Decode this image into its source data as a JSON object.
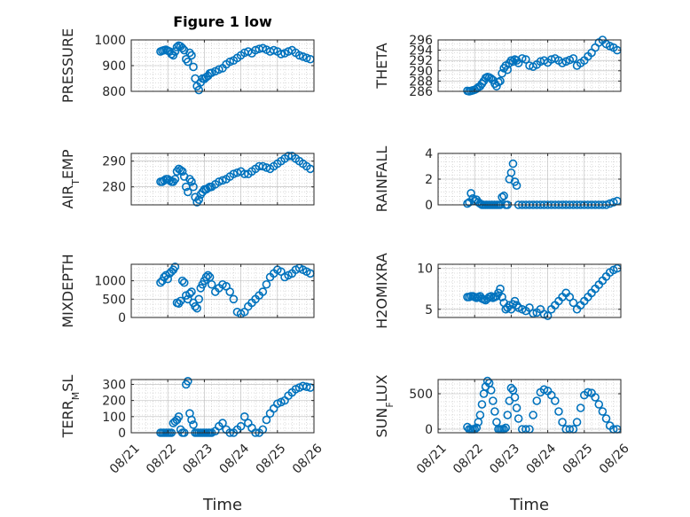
{
  "figure": {
    "title": "Figure 1 low"
  },
  "colors": {
    "marker": "#0072BD",
    "axis": "#262626",
    "grid": "#b8b8b8"
  },
  "chart_data": [
    {
      "type": "scatter",
      "id": "pressure",
      "title": "Figure 1 low",
      "ylabel": "PRESSURE",
      "ylabel_sub": "",
      "ylabel_tail": "",
      "xlabel": "",
      "ylim": [
        800,
        1000
      ],
      "yticks": [
        800,
        900,
        1000
      ],
      "xlim": [
        0,
        5
      ],
      "grid": true,
      "x": [
        0.8,
        0.85,
        0.9,
        0.95,
        1.0,
        1.05,
        1.1,
        1.15,
        1.2,
        1.25,
        1.3,
        1.35,
        1.4,
        1.45,
        1.5,
        1.55,
        1.6,
        1.65,
        1.7,
        1.75,
        1.8,
        1.85,
        1.9,
        1.95,
        2.0,
        2.05,
        2.1,
        2.15,
        2.2,
        2.3,
        2.4,
        2.5,
        2.6,
        2.7,
        2.8,
        2.9,
        3.0,
        3.1,
        3.2,
        3.3,
        3.4,
        3.5,
        3.6,
        3.7,
        3.8,
        3.9,
        4.0,
        4.1,
        4.2,
        4.3,
        4.4,
        4.5,
        4.6,
        4.7,
        4.8,
        4.9
      ],
      "y": [
        955,
        958,
        960,
        962,
        958,
        955,
        945,
        940,
        955,
        972,
        978,
        975,
        968,
        960,
        925,
        915,
        950,
        940,
        895,
        850,
        820,
        805,
        835,
        850,
        848,
        855,
        860,
        870,
        872,
        878,
        885,
        890,
        905,
        915,
        920,
        930,
        940,
        950,
        955,
        948,
        960,
        965,
        968,
        962,
        955,
        960,
        955,
        945,
        948,
        955,
        960,
        950,
        940,
        935,
        930,
        925
      ]
    },
    {
      "type": "scatter",
      "id": "theta",
      "ylabel": "THETA",
      "ylabel_sub": "",
      "ylabel_tail": "",
      "xlabel": "",
      "ylim": [
        286,
        296
      ],
      "yticks": [
        286,
        288,
        290,
        292,
        294,
        296
      ],
      "xlim": [
        0,
        5
      ],
      "grid": true,
      "x": [
        0.8,
        0.85,
        0.9,
        0.95,
        1.0,
        1.05,
        1.1,
        1.15,
        1.2,
        1.25,
        1.3,
        1.35,
        1.4,
        1.45,
        1.5,
        1.55,
        1.6,
        1.65,
        1.7,
        1.75,
        1.8,
        1.85,
        1.9,
        1.95,
        2.0,
        2.05,
        2.1,
        2.15,
        2.2,
        2.3,
        2.4,
        2.5,
        2.6,
        2.7,
        2.8,
        2.9,
        3.0,
        3.1,
        3.2,
        3.3,
        3.4,
        3.5,
        3.6,
        3.7,
        3.8,
        3.9,
        4.0,
        4.1,
        4.2,
        4.3,
        4.4,
        4.5,
        4.6,
        4.7,
        4.8,
        4.9
      ],
      "y": [
        286.1,
        286.0,
        286.1,
        286.2,
        286.3,
        286.5,
        286.8,
        287.0,
        287.5,
        288.0,
        288.6,
        288.8,
        288.7,
        288.5,
        288.2,
        287.5,
        287.0,
        287.8,
        288.0,
        289.5,
        290.5,
        291.0,
        290.2,
        291.5,
        292.0,
        291.8,
        292.2,
        292.0,
        291.5,
        292.4,
        292.2,
        291.0,
        290.8,
        291.2,
        291.8,
        292.0,
        291.6,
        292.2,
        292.4,
        292.0,
        291.5,
        291.8,
        292.1,
        292.4,
        291.0,
        291.5,
        292.0,
        292.8,
        293.5,
        294.5,
        295.5,
        296.0,
        295.2,
        294.8,
        294.5,
        294.0
      ]
    },
    {
      "type": "scatter",
      "id": "airtemp",
      "ylabel": "AIR",
      "ylabel_sub": "T",
      "ylabel_tail": "EMP",
      "xlabel": "",
      "ylim": [
        273,
        293
      ],
      "yticks": [
        280,
        290
      ],
      "xlim": [
        0,
        5
      ],
      "grid": true,
      "x": [
        0.8,
        0.85,
        0.9,
        0.95,
        1.0,
        1.05,
        1.1,
        1.15,
        1.2,
        1.25,
        1.3,
        1.35,
        1.4,
        1.45,
        1.5,
        1.55,
        1.6,
        1.65,
        1.7,
        1.75,
        1.8,
        1.85,
        1.9,
        1.95,
        2.0,
        2.05,
        2.1,
        2.15,
        2.2,
        2.3,
        2.4,
        2.5,
        2.6,
        2.7,
        2.8,
        2.9,
        3.0,
        3.1,
        3.2,
        3.3,
        3.4,
        3.5,
        3.6,
        3.7,
        3.8,
        3.9,
        4.0,
        4.1,
        4.2,
        4.3,
        4.4,
        4.5,
        4.6,
        4.7,
        4.8,
        4.9
      ],
      "y": [
        282,
        282,
        282.5,
        283,
        283,
        282.5,
        282,
        282,
        283,
        286,
        287,
        286.5,
        286,
        284,
        280,
        278,
        283,
        282,
        280,
        276,
        274,
        275,
        277,
        278,
        279,
        279,
        279.5,
        280,
        280,
        281,
        282,
        282.5,
        283,
        284,
        285,
        285.5,
        286,
        285,
        285,
        286,
        287,
        288,
        288,
        287.5,
        287,
        288,
        289,
        290,
        291,
        292,
        292,
        291,
        290,
        289,
        288,
        287
      ]
    },
    {
      "type": "scatter",
      "id": "rainfall",
      "ylabel": "RAINFALL",
      "ylabel_sub": "",
      "ylabel_tail": "",
      "xlabel": "",
      "ylim": [
        0,
        4
      ],
      "yticks": [
        0,
        2,
        4
      ],
      "xlim": [
        0,
        5
      ],
      "grid": true,
      "x": [
        0.8,
        0.85,
        0.9,
        0.95,
        1.0,
        1.05,
        1.1,
        1.15,
        1.2,
        1.25,
        1.3,
        1.35,
        1.4,
        1.45,
        1.5,
        1.55,
        1.6,
        1.65,
        1.7,
        1.75,
        1.8,
        1.85,
        1.9,
        1.95,
        2.0,
        2.05,
        2.1,
        2.15,
        2.2,
        2.3,
        2.4,
        2.5,
        2.6,
        2.7,
        2.8,
        2.9,
        3.0,
        3.1,
        3.2,
        3.3,
        3.4,
        3.5,
        3.6,
        3.7,
        3.8,
        3.9,
        4.0,
        4.1,
        4.2,
        4.3,
        4.4,
        4.5,
        4.6,
        4.7,
        4.8,
        4.9
      ],
      "y": [
        0.1,
        0.2,
        0.9,
        0.5,
        0.3,
        0.4,
        0.2,
        0.1,
        0,
        0,
        0,
        0,
        0,
        0,
        0,
        0,
        0,
        0,
        0,
        0.6,
        0.7,
        0,
        0,
        2,
        2.5,
        3.2,
        1.8,
        1.5,
        0,
        0,
        0,
        0,
        0,
        0,
        0,
        0,
        0,
        0,
        0,
        0,
        0,
        0,
        0,
        0,
        0,
        0,
        0,
        0,
        0,
        0,
        0,
        0,
        0,
        0.1,
        0.2,
        0.3
      ]
    },
    {
      "type": "scatter",
      "id": "mixdepth",
      "ylabel": "MIXDEPTH",
      "ylabel_sub": "",
      "ylabel_tail": "",
      "xlabel": "",
      "ylim": [
        0,
        1450
      ],
      "yticks": [
        0,
        500,
        1000
      ],
      "xlim": [
        0,
        5
      ],
      "grid": true,
      "x": [
        0.8,
        0.85,
        0.9,
        0.95,
        1.0,
        1.05,
        1.1,
        1.15,
        1.2,
        1.25,
        1.3,
        1.35,
        1.4,
        1.45,
        1.5,
        1.55,
        1.6,
        1.65,
        1.7,
        1.75,
        1.8,
        1.85,
        1.9,
        1.95,
        2.0,
        2.05,
        2.1,
        2.15,
        2.2,
        2.3,
        2.4,
        2.5,
        2.6,
        2.7,
        2.8,
        2.9,
        3.0,
        3.1,
        3.2,
        3.3,
        3.4,
        3.5,
        3.6,
        3.7,
        3.8,
        3.9,
        4.0,
        4.1,
        4.2,
        4.3,
        4.4,
        4.5,
        4.6,
        4.7,
        4.8,
        4.9
      ],
      "y": [
        950,
        1000,
        1100,
        1150,
        1050,
        1200,
        1250,
        1300,
        1380,
        400,
        380,
        450,
        1000,
        950,
        600,
        500,
        650,
        700,
        400,
        300,
        250,
        500,
        800,
        900,
        1000,
        1100,
        1150,
        1100,
        900,
        700,
        800,
        900,
        850,
        700,
        500,
        150,
        100,
        150,
        300,
        400,
        500,
        600,
        700,
        900,
        1100,
        1200,
        1300,
        1250,
        1100,
        1150,
        1200,
        1300,
        1350,
        1300,
        1250,
        1200
      ]
    },
    {
      "type": "scatter",
      "id": "h2omixra",
      "ylabel": "H2OMIXRA",
      "ylabel_sub": "",
      "ylabel_tail": "",
      "xlabel": "",
      "ylim": [
        4,
        10.5
      ],
      "yticks": [
        5,
        10
      ],
      "xlim": [
        0,
        5
      ],
      "grid": true,
      "x": [
        0.8,
        0.85,
        0.9,
        0.95,
        1.0,
        1.05,
        1.1,
        1.15,
        1.2,
        1.25,
        1.3,
        1.35,
        1.4,
        1.45,
        1.5,
        1.55,
        1.6,
        1.65,
        1.7,
        1.75,
        1.8,
        1.85,
        1.9,
        1.95,
        2.0,
        2.05,
        2.1,
        2.15,
        2.2,
        2.3,
        2.4,
        2.5,
        2.6,
        2.7,
        2.8,
        2.9,
        3.0,
        3.1,
        3.2,
        3.3,
        3.4,
        3.5,
        3.6,
        3.7,
        3.8,
        3.9,
        4.0,
        4.1,
        4.2,
        4.3,
        4.4,
        4.5,
        4.6,
        4.7,
        4.8,
        4.9
      ],
      "y": [
        6.5,
        6.5,
        6.6,
        6.6,
        6.5,
        6.4,
        6.5,
        6.6,
        6.3,
        6.2,
        6.1,
        6.3,
        6.5,
        6.6,
        6.4,
        6.5,
        6.6,
        7.0,
        7.5,
        6.5,
        5.8,
        5.0,
        5.2,
        5.5,
        5.0,
        5.6,
        6.0,
        5.5,
        5.2,
        5.0,
        4.8,
        5.2,
        4.5,
        4.6,
        5.0,
        4.4,
        4.2,
        5.0,
        5.5,
        6.0,
        6.5,
        7.0,
        6.5,
        5.8,
        5.0,
        5.5,
        6.0,
        6.5,
        7.0,
        7.5,
        8.0,
        8.5,
        9.0,
        9.5,
        9.8,
        10.0
      ]
    },
    {
      "type": "scatter",
      "id": "terrmsl",
      "ylabel": "TERR",
      "ylabel_sub": "M",
      "ylabel_tail": "SL",
      "xlabel": "Time",
      "ylim": [
        0,
        330
      ],
      "yticks": [
        0,
        100,
        200,
        300
      ],
      "xlim": [
        0,
        5
      ],
      "xticklabels": [
        "08/21",
        "08/22",
        "08/23",
        "08/24",
        "08/25",
        "08/26"
      ],
      "grid": true,
      "x": [
        0.8,
        0.85,
        0.9,
        0.95,
        1.0,
        1.05,
        1.1,
        1.15,
        1.2,
        1.25,
        1.3,
        1.35,
        1.4,
        1.45,
        1.5,
        1.55,
        1.6,
        1.65,
        1.7,
        1.75,
        1.8,
        1.85,
        1.9,
        1.95,
        2.0,
        2.05,
        2.1,
        2.15,
        2.2,
        2.3,
        2.4,
        2.5,
        2.6,
        2.7,
        2.8,
        2.9,
        3.0,
        3.1,
        3.2,
        3.3,
        3.4,
        3.5,
        3.6,
        3.7,
        3.8,
        3.9,
        4.0,
        4.1,
        4.2,
        4.3,
        4.4,
        4.5,
        4.6,
        4.7,
        4.8,
        4.9
      ],
      "y": [
        0,
        0,
        0,
        0,
        0,
        0,
        0,
        60,
        70,
        80,
        100,
        20,
        0,
        0,
        300,
        320,
        120,
        80,
        50,
        0,
        0,
        0,
        0,
        0,
        0,
        0,
        0,
        0,
        0,
        10,
        40,
        60,
        20,
        0,
        0,
        20,
        40,
        100,
        60,
        30,
        0,
        0,
        20,
        80,
        120,
        150,
        180,
        190,
        200,
        230,
        250,
        270,
        280,
        290,
        285,
        280
      ]
    },
    {
      "type": "scatter",
      "id": "sunflux",
      "ylabel": "SUN",
      "ylabel_sub": "F",
      "ylabel_tail": "LUX",
      "xlabel": "Time",
      "ylim": [
        -50,
        700
      ],
      "yticks": [
        0,
        500
      ],
      "xlim": [
        0,
        5
      ],
      "xticklabels": [
        "08/21",
        "08/22",
        "08/23",
        "08/24",
        "08/25",
        "08/26"
      ],
      "grid": true,
      "x": [
        0.8,
        0.85,
        0.9,
        0.95,
        1.0,
        1.05,
        1.1,
        1.15,
        1.2,
        1.25,
        1.3,
        1.35,
        1.4,
        1.45,
        1.5,
        1.55,
        1.6,
        1.65,
        1.7,
        1.75,
        1.8,
        1.85,
        1.9,
        1.95,
        2.0,
        2.05,
        2.1,
        2.15,
        2.2,
        2.3,
        2.4,
        2.5,
        2.6,
        2.7,
        2.8,
        2.9,
        3.0,
        3.1,
        3.2,
        3.3,
        3.4,
        3.5,
        3.6,
        3.7,
        3.8,
        3.9,
        4.0,
        4.1,
        4.2,
        4.3,
        4.4,
        4.5,
        4.6,
        4.7,
        4.8,
        4.9
      ],
      "y": [
        30,
        0,
        0,
        0,
        0,
        20,
        100,
        200,
        350,
        500,
        600,
        680,
        650,
        550,
        400,
        250,
        100,
        0,
        0,
        0,
        0,
        20,
        200,
        400,
        580,
        550,
        450,
        300,
        150,
        0,
        0,
        0,
        200,
        400,
        520,
        560,
        540,
        480,
        400,
        250,
        100,
        0,
        0,
        0,
        100,
        300,
        480,
        520,
        510,
        450,
        350,
        250,
        150,
        50,
        0,
        0
      ]
    }
  ]
}
